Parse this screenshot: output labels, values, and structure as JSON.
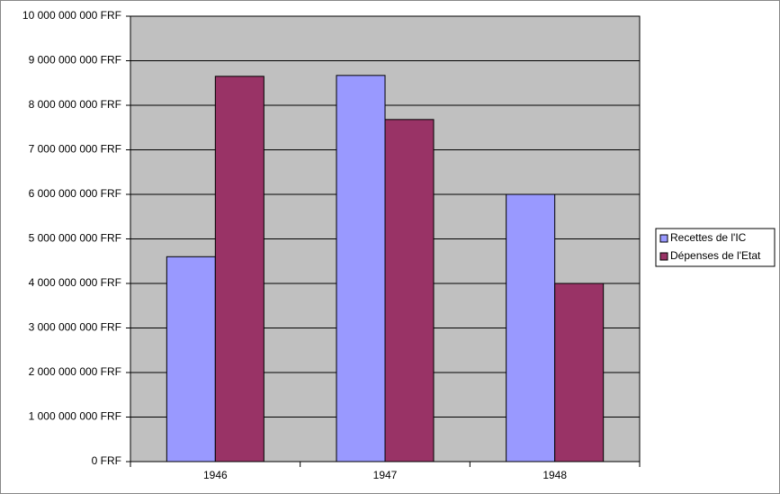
{
  "chart_data": {
    "type": "bar",
    "categories": [
      "1946",
      "1947",
      "1948"
    ],
    "series": [
      {
        "name": "Recettes de l'IC",
        "color": "#9999ff",
        "values": [
          4600000000,
          8670000000,
          6000000000
        ]
      },
      {
        "name": "Dépenses de l'Etat",
        "color": "#993366",
        "values": [
          8650000000,
          7680000000,
          4000000000
        ]
      }
    ],
    "ylim": [
      0,
      10000000000
    ],
    "yticks": [
      {
        "value": 0,
        "label": "0 FRF"
      },
      {
        "value": 1000000000,
        "label": "1 000 000 000 FRF"
      },
      {
        "value": 2000000000,
        "label": "2 000 000 000 FRF"
      },
      {
        "value": 3000000000,
        "label": "3 000 000 000 FRF"
      },
      {
        "value": 4000000000,
        "label": "4 000 000 000 FRF"
      },
      {
        "value": 5000000000,
        "label": "5 000 000 000 FRF"
      },
      {
        "value": 6000000000,
        "label": "6 000 000 000 FRF"
      },
      {
        "value": 7000000000,
        "label": "7 000 000 000 FRF"
      },
      {
        "value": 8000000000,
        "label": "8 000 000 000 FRF"
      },
      {
        "value": 9000000000,
        "label": "9 000 000 000 FRF"
      },
      {
        "value": 10000000000,
        "label": "10 000 000 000 FRF"
      }
    ],
    "grid": true,
    "legend": "right",
    "plot_background": "#c0c0c0"
  }
}
